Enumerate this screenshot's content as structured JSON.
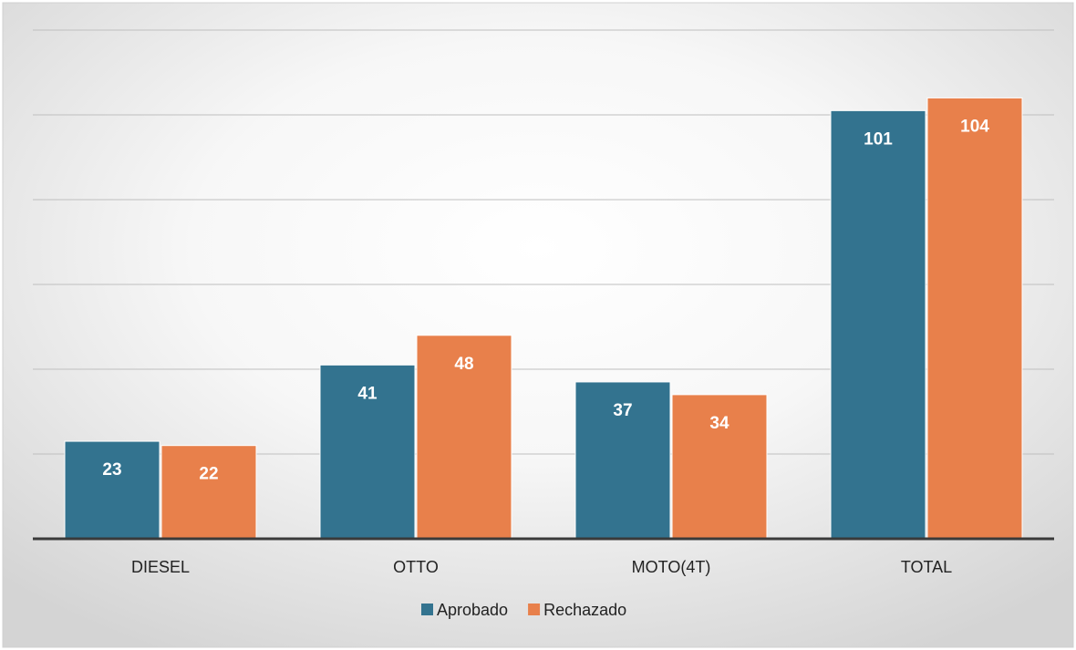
{
  "colors": {
    "aprobado": "#33738F",
    "rechazado": "#E8804B",
    "gridline": "#BFBFBF",
    "axis": "#3A3A3A",
    "text": "#222222",
    "data_label": "#FFFFFF"
  },
  "chart_data": {
    "type": "bar",
    "title": "",
    "xlabel": "",
    "ylabel": "",
    "ylim": [
      0,
      120
    ],
    "grid": true,
    "legend_position": "bottom",
    "categories": [
      "DIESEL",
      "OTTO",
      "MOTO(4T)",
      "TOTAL"
    ],
    "series": [
      {
        "name": "Aprobado",
        "values": [
          23,
          41,
          37,
          101
        ],
        "color": "#33738F"
      },
      {
        "name": "Rechazado",
        "values": [
          22,
          48,
          34,
          104
        ],
        "color": "#E8804B"
      }
    ]
  }
}
